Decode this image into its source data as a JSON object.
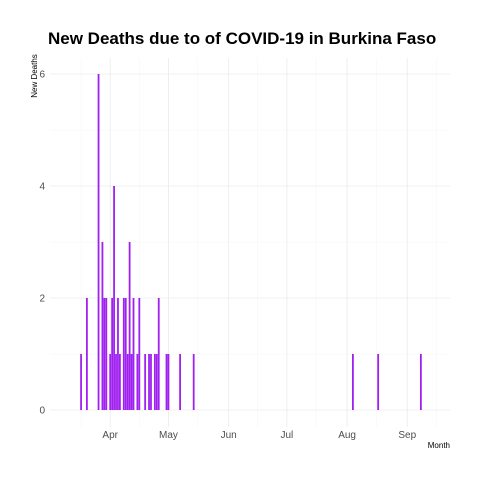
{
  "chart_data": {
    "type": "bar",
    "title": "New Deaths due to of COVID-19 in Burkina Faso",
    "xlabel": "Month",
    "ylabel": "New Deaths",
    "x_ticks": [
      {
        "date": "2020-04-01",
        "label": "Apr"
      },
      {
        "date": "2020-05-01",
        "label": "May"
      },
      {
        "date": "2020-06-01",
        "label": "Jun"
      },
      {
        "date": "2020-07-01",
        "label": "Jul"
      },
      {
        "date": "2020-08-01",
        "label": "Aug"
      },
      {
        "date": "2020-09-01",
        "label": "Sep"
      }
    ],
    "xlim": [
      "2020-03-01",
      "2020-09-23"
    ],
    "y_ticks": [
      0,
      2,
      4,
      6
    ],
    "ylim": [
      0,
      6
    ],
    "grid": true,
    "bar_color": "#a020f0",
    "points": [
      {
        "x": "2020-03-17",
        "y": 1
      },
      {
        "x": "2020-03-20",
        "y": 2
      },
      {
        "x": "2020-03-26",
        "y": 6
      },
      {
        "x": "2020-03-28",
        "y": 3
      },
      {
        "x": "2020-03-29",
        "y": 2
      },
      {
        "x": "2020-03-30",
        "y": 2
      },
      {
        "x": "2020-04-01",
        "y": 1
      },
      {
        "x": "2020-04-02",
        "y": 2
      },
      {
        "x": "2020-04-03",
        "y": 4
      },
      {
        "x": "2020-04-04",
        "y": 1
      },
      {
        "x": "2020-04-05",
        "y": 2
      },
      {
        "x": "2020-04-06",
        "y": 1
      },
      {
        "x": "2020-04-08",
        "y": 2
      },
      {
        "x": "2020-04-09",
        "y": 2
      },
      {
        "x": "2020-04-10",
        "y": 1
      },
      {
        "x": "2020-04-11",
        "y": 3
      },
      {
        "x": "2020-04-12",
        "y": 1
      },
      {
        "x": "2020-04-13",
        "y": 2
      },
      {
        "x": "2020-04-15",
        "y": 1
      },
      {
        "x": "2020-04-16",
        "y": 2
      },
      {
        "x": "2020-04-19",
        "y": 1
      },
      {
        "x": "2020-04-21",
        "y": 1
      },
      {
        "x": "2020-04-22",
        "y": 1
      },
      {
        "x": "2020-04-24",
        "y": 1
      },
      {
        "x": "2020-04-25",
        "y": 1
      },
      {
        "x": "2020-04-26",
        "y": 2
      },
      {
        "x": "2020-04-30",
        "y": 1
      },
      {
        "x": "2020-05-01",
        "y": 1
      },
      {
        "x": "2020-05-07",
        "y": 1
      },
      {
        "x": "2020-05-14",
        "y": 1
      },
      {
        "x": "2020-08-04",
        "y": 1
      },
      {
        "x": "2020-08-17",
        "y": 1
      },
      {
        "x": "2020-09-08",
        "y": 1
      }
    ]
  }
}
